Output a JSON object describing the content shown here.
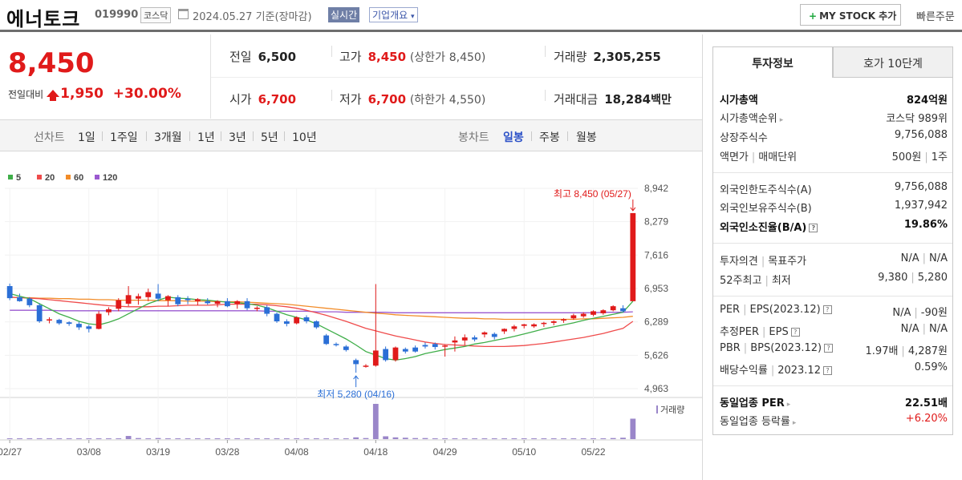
{
  "header": {
    "name": "에너토크",
    "code": "019990",
    "market": "코스닥",
    "date": "2024.05.27",
    "basis": "기준(장마감)",
    "realtime": "실시간",
    "corp_info": "기업개요",
    "my_stock": "MY STOCK 추가",
    "quick_order": "빠른주문"
  },
  "price": {
    "current": "8,450",
    "change_label": "전일대비",
    "change": "1,950",
    "change_pct": "+30.00%"
  },
  "stats": {
    "prev_close_label": "전일",
    "prev_close": "6,500",
    "high_label": "고가",
    "high": "8,450",
    "upper_limit_label": "(상한가",
    "upper_limit": "8,450)",
    "volume_label": "거래량",
    "volume": "2,305,255",
    "open_label": "시가",
    "open": "6,700",
    "low_label": "저가",
    "low": "6,700",
    "lower_limit_label": "(하한가",
    "lower_limit": "4,550)",
    "amount_label": "거래대금",
    "amount": "18,284",
    "amount_unit": "백만"
  },
  "period_bar": {
    "line_label": "선차트",
    "line_items": [
      "1일",
      "1주일",
      "3개월",
      "1년",
      "3년",
      "5년",
      "10년"
    ],
    "candle_label": "봉차트",
    "candle_items": [
      "일봉",
      "주봉",
      "월봉"
    ],
    "active_candle": "일봉"
  },
  "right_panel": {
    "tabs": [
      "투자정보",
      "호가 10단계"
    ],
    "market_cap_label": "시가총액",
    "market_cap": "824억원",
    "market_cap_rank_label": "시가총액순위",
    "market_cap_rank": "코스닥 989위",
    "shares_label": "상장주식수",
    "shares": "9,756,088",
    "par_label": "액면가",
    "unit_label": "매매단위",
    "par": "500원",
    "unit": "1주",
    "foreign_limit_label": "외국인한도주식수(A)",
    "foreign_limit": "9,756,088",
    "foreign_hold_label": "외국인보유주식수(B)",
    "foreign_hold": "1,937,942",
    "foreign_ratio_label": "외국인소진율(B/A)",
    "foreign_ratio": "19.86%",
    "opinion_label": "투자의견",
    "target_label": "목표주가",
    "opinion": "N/A",
    "target": "N/A",
    "week52_high_label": "52주최고",
    "week52_low_label": "최저",
    "week52_high": "9,380",
    "week52_low": "5,280",
    "per_label": "PER",
    "eps_label": "EPS(2023.12)",
    "per": "N/A",
    "eps": "-90원",
    "est_per_label": "추정PER",
    "est_eps_label": "EPS",
    "est_per": "N/A",
    "est_eps": "N/A",
    "pbr_label": "PBR",
    "bps_label": "BPS(2023.12)",
    "pbr": "1.97배",
    "bps": "4,287원",
    "div_label": "배당수익률",
    "div_date": "2023.12",
    "div": "0.59%",
    "sector_per_label": "동일업종 PER",
    "sector_per": "22.51배",
    "sector_rate_label": "동일업종 등락률",
    "sector_rate": "+6.20%"
  },
  "chart_data": {
    "type": "candlestick",
    "legend": [
      "5",
      "20",
      "60",
      "120"
    ],
    "legend_colors": [
      "#3fae49",
      "#ef4b4b",
      "#f28c28",
      "#9b59d0"
    ],
    "up_color": "#e01a1a",
    "down_color": "#2b6fd6",
    "y_ticks": [
      "8,942",
      "8,279",
      "7,616",
      "6,953",
      "6,289",
      "5,626",
      "4,963"
    ],
    "ylim": [
      4963,
      8942
    ],
    "x_ticks": [
      "02/27",
      "03/08",
      "03/19",
      "03/28",
      "04/08",
      "04/18",
      "04/29",
      "05/10",
      "05/22"
    ],
    "high_annotation": "최고 8,450 (05/27)",
    "low_annotation": "최저 5,280 (04/16)",
    "volume_label": "거래량",
    "candles": [
      [
        7000,
        7050,
        6720,
        6760
      ],
      [
        6780,
        6850,
        6690,
        6700
      ],
      [
        6750,
        6780,
        6580,
        6620
      ],
      [
        6620,
        6660,
        6270,
        6300
      ],
      [
        6330,
        6380,
        6260,
        6340
      ],
      [
        6330,
        6350,
        6230,
        6260
      ],
      [
        6280,
        6300,
        6210,
        6250
      ],
      [
        6250,
        6290,
        6130,
        6180
      ],
      [
        6200,
        6230,
        6080,
        6150
      ],
      [
        6150,
        6500,
        6140,
        6450
      ],
      [
        6480,
        6580,
        6420,
        6540
      ],
      [
        6550,
        6760,
        6500,
        6720
      ],
      [
        6650,
        7000,
        6600,
        6820
      ],
      [
        6750,
        6850,
        6630,
        6800
      ],
      [
        6780,
        6950,
        6700,
        6880
      ],
      [
        6850,
        7040,
        6700,
        6750
      ],
      [
        6720,
        6820,
        6600,
        6800
      ],
      [
        6780,
        6820,
        6600,
        6640
      ],
      [
        6750,
        6800,
        6640,
        6720
      ],
      [
        6700,
        6760,
        6620,
        6740
      ],
      [
        6700,
        6760,
        6630,
        6660
      ],
      [
        6650,
        6720,
        6580,
        6700
      ],
      [
        6700,
        6760,
        6580,
        6600
      ],
      [
        6650,
        6720,
        6550,
        6700
      ],
      [
        6700,
        6760,
        6520,
        6560
      ],
      [
        6560,
        6600,
        6500,
        6570
      ],
      [
        6580,
        6620,
        6400,
        6450
      ],
      [
        6450,
        6480,
        6270,
        6300
      ],
      [
        6300,
        6340,
        6200,
        6250
      ],
      [
        6260,
        6400,
        6240,
        6380
      ],
      [
        6380,
        6420,
        6260,
        6300
      ],
      [
        6300,
        6320,
        6150,
        6180
      ],
      [
        6020,
        6050,
        5830,
        5850
      ],
      [
        5850,
        5880,
        5800,
        5830
      ],
      [
        5800,
        5830,
        5700,
        5730
      ],
      [
        5530,
        5560,
        5280,
        5450
      ],
      [
        5400,
        5450,
        5380,
        5420
      ],
      [
        5420,
        7040,
        5400,
        5720
      ],
      [
        5750,
        5800,
        5500,
        5530
      ],
      [
        5530,
        5800,
        5500,
        5780
      ],
      [
        5750,
        5780,
        5660,
        5700
      ],
      [
        5780,
        5820,
        5680,
        5700
      ],
      [
        5830,
        5880,
        5760,
        5800
      ],
      [
        5850,
        5880,
        5740,
        5790
      ],
      [
        5800,
        5830,
        5600,
        5820
      ],
      [
        5880,
        6000,
        5700,
        5920
      ],
      [
        5920,
        6040,
        5830,
        5980
      ],
      [
        5980,
        6020,
        5900,
        5940
      ],
      [
        6040,
        6100,
        5980,
        6080
      ],
      [
        6050,
        6080,
        5940,
        5990
      ],
      [
        6100,
        6160,
        6050,
        6150
      ],
      [
        6150,
        6230,
        6100,
        6200
      ],
      [
        6210,
        6250,
        6160,
        6240
      ],
      [
        6200,
        6260,
        6170,
        6240
      ],
      [
        6250,
        6290,
        6190,
        6270
      ],
      [
        6270,
        6320,
        6220,
        6300
      ],
      [
        6320,
        6360,
        6270,
        6340
      ],
      [
        6360,
        6450,
        6330,
        6420
      ],
      [
        6400,
        6480,
        6370,
        6450
      ],
      [
        6430,
        6520,
        6400,
        6500
      ],
      [
        6460,
        6540,
        6430,
        6520
      ],
      [
        6520,
        6620,
        6500,
        6600
      ],
      [
        6560,
        6620,
        6480,
        6500
      ],
      [
        6700,
        8450,
        6700,
        8450
      ]
    ],
    "ma5": [
      6850,
      6800,
      6750,
      6650,
      6550,
      6450,
      6380,
      6300,
      6250,
      6230,
      6280,
      6350,
      6450,
      6550,
      6650,
      6720,
      6780,
      6760,
      6750,
      6730,
      6720,
      6700,
      6680,
      6670,
      6650,
      6620,
      6570,
      6500,
      6430,
      6380,
      6330,
      6250,
      6150,
      6050,
      5950,
      5830,
      5700,
      5630,
      5560,
      5530,
      5560,
      5600,
      5660,
      5700,
      5740,
      5770,
      5800,
      5850,
      5880,
      5920,
      5960,
      6000,
      6050,
      6100,
      6150,
      6190,
      6230,
      6270,
      6320,
      6360,
      6400,
      6440,
      6480,
      6700
    ],
    "ma20": [
      6780,
      6770,
      6760,
      6750,
      6730,
      6710,
      6690,
      6670,
      6650,
      6630,
      6610,
      6600,
      6590,
      6590,
      6590,
      6600,
      6600,
      6610,
      6620,
      6620,
      6620,
      6630,
      6640,
      6640,
      6640,
      6640,
      6630,
      6610,
      6590,
      6560,
      6520,
      6470,
      6420,
      6360,
      6300,
      6230,
      6160,
      6110,
      6060,
      6010,
      5970,
      5930,
      5890,
      5860,
      5840,
      5830,
      5820,
      5810,
      5800,
      5800,
      5800,
      5810,
      5820,
      5840,
      5860,
      5890,
      5920,
      5950,
      5980,
      6020,
      6060,
      6110,
      6160,
      6300
    ],
    "ma60": [
      6780,
      6770,
      6770,
      6760,
      6760,
      6750,
      6750,
      6740,
      6740,
      6730,
      6730,
      6720,
      6720,
      6720,
      6720,
      6710,
      6710,
      6710,
      6700,
      6700,
      6700,
      6690,
      6690,
      6690,
      6680,
      6670,
      6660,
      6650,
      6640,
      6620,
      6600,
      6580,
      6560,
      6540,
      6520,
      6500,
      6480,
      6460,
      6450,
      6430,
      6420,
      6410,
      6400,
      6390,
      6380,
      6370,
      6360,
      6360,
      6350,
      6350,
      6340,
      6340,
      6340,
      6340,
      6340,
      6340,
      6340,
      6340,
      6350,
      6350,
      6360,
      6370,
      6380,
      6400
    ],
    "ma120": [
      6520,
      6520,
      6520,
      6520,
      6520,
      6510,
      6510,
      6510,
      6510,
      6510,
      6510,
      6510,
      6510,
      6510,
      6510,
      6510,
      6510,
      6510,
      6510,
      6510,
      6510,
      6510,
      6510,
      6510,
      6510,
      6510,
      6500,
      6500,
      6500,
      6500,
      6500,
      6490,
      6490,
      6490,
      6480,
      6480,
      6480,
      6480,
      6480,
      6470,
      6470,
      6470,
      6470,
      6470,
      6470,
      6470,
      6470,
      6470,
      6470,
      6470,
      6470,
      6470,
      6470,
      6470,
      6470,
      6470,
      6470,
      6470,
      6470,
      6470,
      6480,
      6480,
      6480,
      6490
    ],
    "volume": [
      0.02,
      0.01,
      0.01,
      0.02,
      0.01,
      0.01,
      0.01,
      0.01,
      0.01,
      0.02,
      0.01,
      0.02,
      0.09,
      0.03,
      0.02,
      0.03,
      0.01,
      0.01,
      0.02,
      0.01,
      0.01,
      0.01,
      0.01,
      0.01,
      0.01,
      0.01,
      0.01,
      0.02,
      0.01,
      0.01,
      0.01,
      0.01,
      0.02,
      0.01,
      0.01,
      0.05,
      0.03,
      1.0,
      0.08,
      0.05,
      0.04,
      0.03,
      0.03,
      0.02,
      0.02,
      0.02,
      0.02,
      0.02,
      0.01,
      0.01,
      0.01,
      0.01,
      0.01,
      0.02,
      0.01,
      0.01,
      0.02,
      0.02,
      0.02,
      0.01,
      0.02,
      0.03,
      0.04,
      0.58
    ]
  }
}
